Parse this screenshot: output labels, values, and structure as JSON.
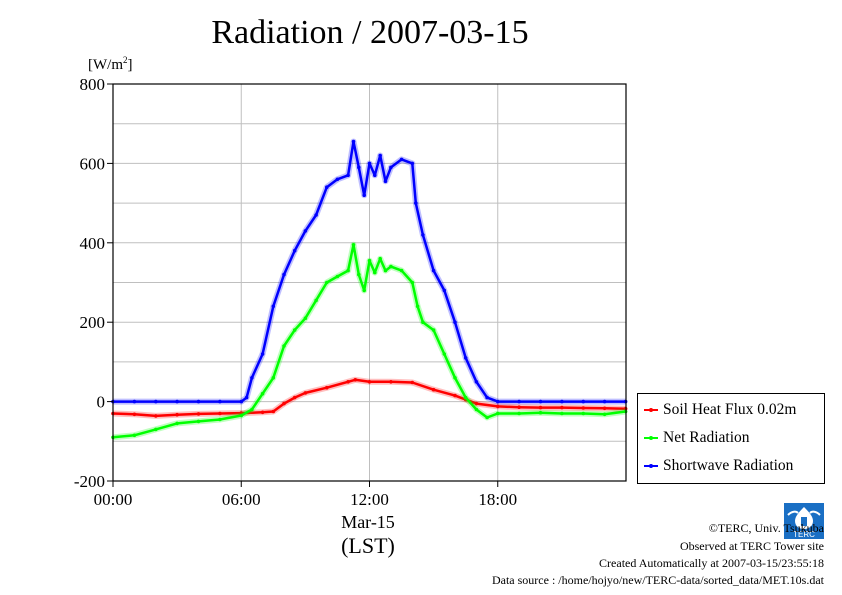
{
  "chart_data": {
    "type": "line",
    "title": "Radiation / 2007-03-15",
    "ylabel_unit": "[W/m2]",
    "ylim": [
      -200,
      800
    ],
    "xlim": [
      "00:00",
      "24:00"
    ],
    "yticks": [
      "800",
      "600",
      "400",
      "200",
      "0",
      "-200"
    ],
    "xticks": [
      "00:00",
      "06:00",
      "12:00",
      "18:00"
    ],
    "xdate": "Mar-15",
    "xunit": "(LST)",
    "grid": true,
    "legend_position": "right-bottom",
    "series": [
      {
        "name": "Soil Heat Flux 0.02m",
        "color": "#ff0000",
        "points": [
          [
            "00:00",
            -30
          ],
          [
            "01:00",
            -32
          ],
          [
            "02:00",
            -36
          ],
          [
            "03:00",
            -33
          ],
          [
            "04:00",
            -31
          ],
          [
            "05:00",
            -30
          ],
          [
            "06:00",
            -29
          ],
          [
            "07:00",
            -27
          ],
          [
            "07:30",
            -25
          ],
          [
            "08:00",
            -5
          ],
          [
            "08:30",
            10
          ],
          [
            "09:00",
            22
          ],
          [
            "10:00",
            35
          ],
          [
            "11:00",
            50
          ],
          [
            "11:20",
            55
          ],
          [
            "12:00",
            50
          ],
          [
            "13:00",
            50
          ],
          [
            "14:00",
            48
          ],
          [
            "15:00",
            30
          ],
          [
            "16:00",
            15
          ],
          [
            "16:30",
            5
          ],
          [
            "17:00",
            -5
          ],
          [
            "18:00",
            -12
          ],
          [
            "19:00",
            -14
          ],
          [
            "20:00",
            -15
          ],
          [
            "21:00",
            -15
          ],
          [
            "22:00",
            -16
          ],
          [
            "23:00",
            -17
          ],
          [
            "23:59",
            -18
          ]
        ]
      },
      {
        "name": "Net Radiation",
        "color": "#00ff00",
        "points": [
          [
            "00:00",
            -90
          ],
          [
            "01:00",
            -85
          ],
          [
            "02:00",
            -70
          ],
          [
            "03:00",
            -55
          ],
          [
            "04:00",
            -50
          ],
          [
            "05:00",
            -45
          ],
          [
            "06:00",
            -35
          ],
          [
            "06:30",
            -20
          ],
          [
            "07:00",
            20
          ],
          [
            "07:30",
            60
          ],
          [
            "08:00",
            140
          ],
          [
            "08:30",
            180
          ],
          [
            "09:00",
            210
          ],
          [
            "09:30",
            255
          ],
          [
            "10:00",
            300
          ],
          [
            "10:30",
            315
          ],
          [
            "11:00",
            330
          ],
          [
            "11:15",
            395
          ],
          [
            "11:30",
            320
          ],
          [
            "11:45",
            280
          ],
          [
            "12:00",
            355
          ],
          [
            "12:15",
            325
          ],
          [
            "12:30",
            360
          ],
          [
            "12:45",
            330
          ],
          [
            "13:00",
            340
          ],
          [
            "13:30",
            330
          ],
          [
            "14:00",
            300
          ],
          [
            "14:15",
            240
          ],
          [
            "14:30",
            200
          ],
          [
            "15:00",
            180
          ],
          [
            "15:30",
            120
          ],
          [
            "16:00",
            60
          ],
          [
            "16:30",
            10
          ],
          [
            "17:00",
            -20
          ],
          [
            "17:30",
            -40
          ],
          [
            "18:00",
            -30
          ],
          [
            "19:00",
            -30
          ],
          [
            "20:00",
            -28
          ],
          [
            "21:00",
            -30
          ],
          [
            "22:00",
            -30
          ],
          [
            "23:00",
            -32
          ],
          [
            "23:59",
            -25
          ]
        ]
      },
      {
        "name": "Shortwave Radiation",
        "color": "#0000ff",
        "points": [
          [
            "00:00",
            0
          ],
          [
            "01:00",
            0
          ],
          [
            "02:00",
            0
          ],
          [
            "03:00",
            0
          ],
          [
            "04:00",
            0
          ],
          [
            "05:00",
            0
          ],
          [
            "06:00",
            0
          ],
          [
            "06:15",
            10
          ],
          [
            "06:30",
            60
          ],
          [
            "07:00",
            120
          ],
          [
            "07:30",
            240
          ],
          [
            "08:00",
            320
          ],
          [
            "08:30",
            380
          ],
          [
            "09:00",
            430
          ],
          [
            "09:30",
            470
          ],
          [
            "10:00",
            540
          ],
          [
            "10:30",
            560
          ],
          [
            "11:00",
            570
          ],
          [
            "11:15",
            655
          ],
          [
            "11:30",
            590
          ],
          [
            "11:45",
            520
          ],
          [
            "12:00",
            600
          ],
          [
            "12:15",
            570
          ],
          [
            "12:30",
            620
          ],
          [
            "12:45",
            555
          ],
          [
            "13:00",
            590
          ],
          [
            "13:30",
            610
          ],
          [
            "14:00",
            600
          ],
          [
            "14:10",
            500
          ],
          [
            "14:30",
            420
          ],
          [
            "15:00",
            330
          ],
          [
            "15:30",
            280
          ],
          [
            "16:00",
            200
          ],
          [
            "16:30",
            110
          ],
          [
            "17:00",
            50
          ],
          [
            "17:30",
            10
          ],
          [
            "18:00",
            0
          ],
          [
            "19:00",
            0
          ],
          [
            "20:00",
            0
          ],
          [
            "21:00",
            0
          ],
          [
            "22:00",
            0
          ],
          [
            "23:00",
            0
          ],
          [
            "23:59",
            0
          ]
        ]
      }
    ]
  },
  "footer": {
    "copyright": "©TERC, Univ. Tsukuba",
    "observed": "Observed at TERC Tower site",
    "created": "Created Automatically at 2007-03-15/23:55:18",
    "source": "Data source : /home/hojyo/new/TERC-data/sorted_data/MET.10s.dat"
  },
  "logo": {
    "text": "TERC",
    "color": "#1a6fc4"
  }
}
